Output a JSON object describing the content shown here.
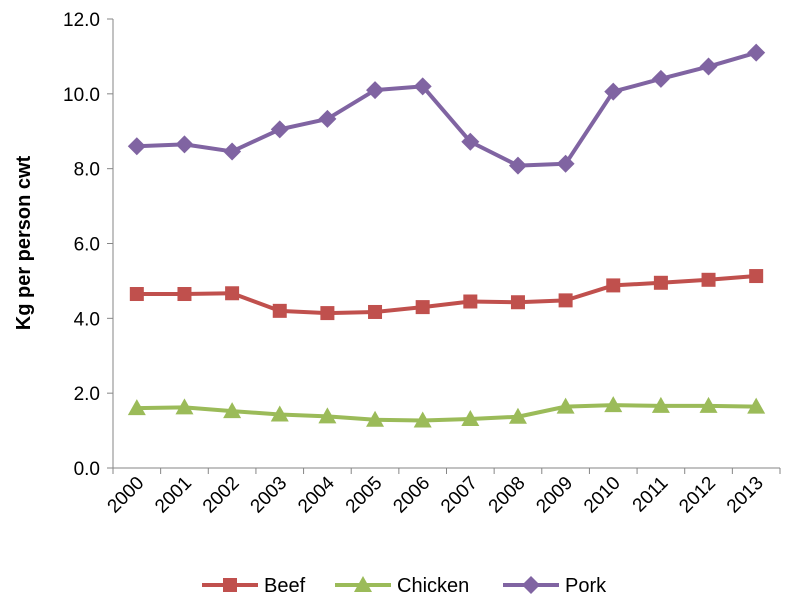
{
  "chart_data": {
    "type": "line",
    "title": "",
    "xlabel": "",
    "ylabel": "Kg per person cwt",
    "categories": [
      "2000",
      "2001",
      "2002",
      "2003",
      "2004",
      "2005",
      "2006",
      "2007",
      "2008",
      "2009",
      "2010",
      "2011",
      "2012",
      "2013"
    ],
    "ylim": [
      0,
      12
    ],
    "yticks": [
      "0.0",
      "2.0",
      "4.0",
      "6.0",
      "8.0",
      "10.0",
      "12.0"
    ],
    "grid": false,
    "legend_position": "bottom",
    "series": [
      {
        "name": "Beef",
        "color": "#c0504d",
        "marker": "square",
        "values": [
          4.65,
          4.65,
          4.67,
          4.2,
          4.14,
          4.17,
          4.3,
          4.45,
          4.43,
          4.48,
          4.88,
          4.95,
          5.03,
          5.13
        ]
      },
      {
        "name": "Chicken",
        "color": "#9bbb59",
        "marker": "triangle",
        "values": [
          1.6,
          1.62,
          1.52,
          1.43,
          1.38,
          1.29,
          1.27,
          1.31,
          1.37,
          1.64,
          1.68,
          1.66,
          1.66,
          1.64
        ]
      },
      {
        "name": "Pork",
        "color": "#8064a2",
        "marker": "diamond",
        "values": [
          8.6,
          8.65,
          8.46,
          9.05,
          9.33,
          10.1,
          10.2,
          8.72,
          8.08,
          8.13,
          10.06,
          10.4,
          10.73,
          11.1
        ]
      }
    ]
  }
}
